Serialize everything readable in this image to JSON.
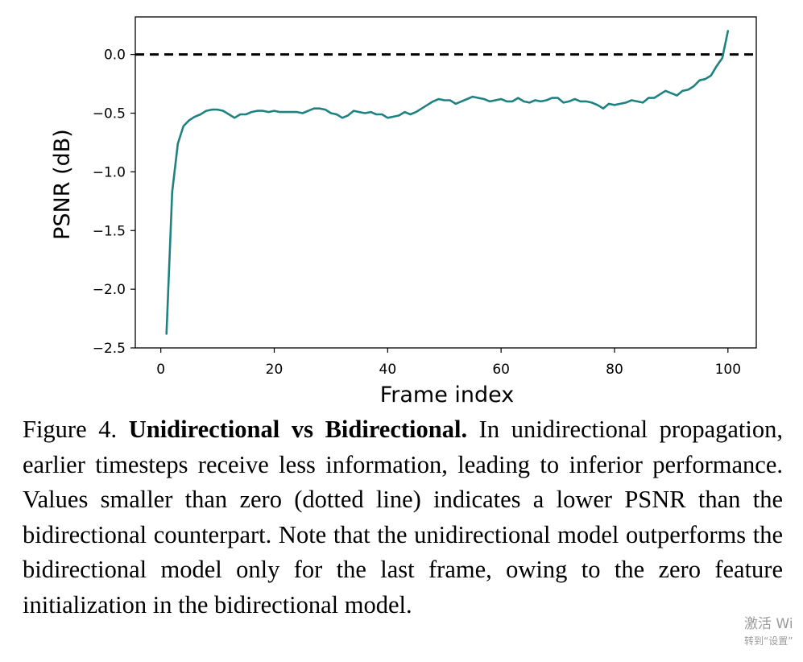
{
  "chart_data": {
    "type": "line",
    "title": "",
    "xlabel": "Frame index",
    "ylabel": "PSNR (dB)",
    "xlim": [
      -4.5,
      105
    ],
    "ylim": [
      -2.5,
      0.32
    ],
    "xticks": [
      0,
      20,
      40,
      60,
      80,
      100
    ],
    "yticks": [
      0.0,
      -0.5,
      -1.0,
      -1.5,
      -2.0,
      -2.5
    ],
    "xtick_labels": [
      "0",
      "20",
      "40",
      "60",
      "80",
      "100"
    ],
    "ytick_labels": [
      "0.0",
      "−0.5",
      "−1.0",
      "−1.5",
      "−2.0",
      "−2.5"
    ],
    "grid": false,
    "reference_line": {
      "y": 0.0,
      "style": "dashed",
      "color": "#000000"
    },
    "series": [
      {
        "color": "#1f8282",
        "x": [
          1,
          2,
          3,
          4,
          5,
          6,
          7,
          8,
          9,
          10,
          11,
          12,
          13,
          14,
          15,
          16,
          17,
          18,
          19,
          20,
          21,
          22,
          23,
          24,
          25,
          26,
          27,
          28,
          29,
          30,
          31,
          32,
          33,
          34,
          35,
          36,
          37,
          38,
          39,
          40,
          41,
          42,
          43,
          44,
          45,
          46,
          47,
          48,
          49,
          50,
          51,
          52,
          53,
          54,
          55,
          56,
          57,
          58,
          59,
          60,
          61,
          62,
          63,
          64,
          65,
          66,
          67,
          68,
          69,
          70,
          71,
          72,
          73,
          74,
          75,
          76,
          77,
          78,
          79,
          80,
          81,
          82,
          83,
          84,
          85,
          86,
          87,
          88,
          89,
          90,
          91,
          92,
          93,
          94,
          95,
          96,
          97,
          98,
          99,
          100
        ],
        "y": [
          -2.38,
          -1.17,
          -0.76,
          -0.61,
          -0.56,
          -0.53,
          -0.51,
          -0.48,
          -0.47,
          -0.47,
          -0.48,
          -0.51,
          -0.54,
          -0.51,
          -0.51,
          -0.49,
          -0.48,
          -0.48,
          -0.49,
          -0.48,
          -0.49,
          -0.49,
          -0.49,
          -0.49,
          -0.5,
          -0.48,
          -0.46,
          -0.46,
          -0.47,
          -0.5,
          -0.51,
          -0.54,
          -0.52,
          -0.48,
          -0.49,
          -0.5,
          -0.49,
          -0.51,
          -0.51,
          -0.54,
          -0.53,
          -0.52,
          -0.49,
          -0.51,
          -0.49,
          -0.46,
          -0.43,
          -0.4,
          -0.38,
          -0.39,
          -0.39,
          -0.42,
          -0.4,
          -0.38,
          -0.36,
          -0.37,
          -0.38,
          -0.4,
          -0.39,
          -0.38,
          -0.4,
          -0.4,
          -0.37,
          -0.4,
          -0.41,
          -0.39,
          -0.4,
          -0.39,
          -0.37,
          -0.37,
          -0.41,
          -0.4,
          -0.38,
          -0.4,
          -0.4,
          -0.41,
          -0.43,
          -0.46,
          -0.42,
          -0.43,
          -0.42,
          -0.41,
          -0.39,
          -0.4,
          -0.41,
          -0.37,
          -0.37,
          -0.34,
          -0.31,
          -0.33,
          -0.35,
          -0.31,
          -0.3,
          -0.27,
          -0.22,
          -0.21,
          -0.18,
          -0.1,
          -0.03,
          0.2
        ]
      }
    ]
  },
  "caption": {
    "lead": "Figure 4. ",
    "bold": "Unidirectional vs Bidirectional.",
    "body": " In unidirectional propagation, earlier timesteps receive less information, leading to inferior performance. Values smaller than zero (dotted line) indicates a lower PSNR than the bidirectional counterpart. Note that the unidirectional model outperforms the bidirectional model only for the last frame, owing to the zero feature initialization in the bidirectional model."
  },
  "watermark": {
    "line1": "激活 Wi",
    "line2": "转到“设置”"
  }
}
